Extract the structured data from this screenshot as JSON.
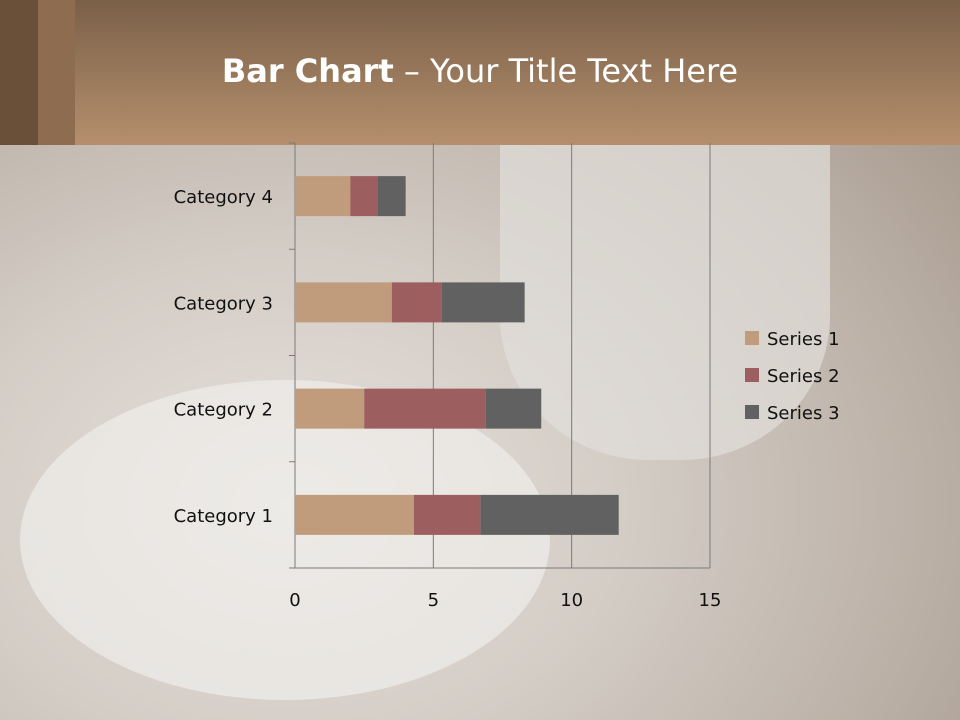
{
  "title": {
    "bold": "Bar Chart",
    "rest": " – Your Title Text Here"
  },
  "chart_data": {
    "type": "bar",
    "orientation": "horizontal",
    "stacked": true,
    "categories": [
      "Category 1",
      "Category 2",
      "Category 3",
      "Category 4"
    ],
    "series": [
      {
        "name": "Series 1",
        "values": [
          4.3,
          2.5,
          3.5,
          2
        ],
        "color": "#C09C7C"
      },
      {
        "name": "Series 2",
        "values": [
          2.4,
          4.4,
          1.8,
          1
        ],
        "color": "#9C5E5E"
      },
      {
        "name": "Series 3",
        "values": [
          5,
          2,
          3,
          1
        ],
        "color": "#616161"
      }
    ],
    "xlim": [
      0,
      15
    ],
    "xticks": [
      "0",
      "5",
      "10",
      "15"
    ],
    "grid": true,
    "legend": "right"
  }
}
